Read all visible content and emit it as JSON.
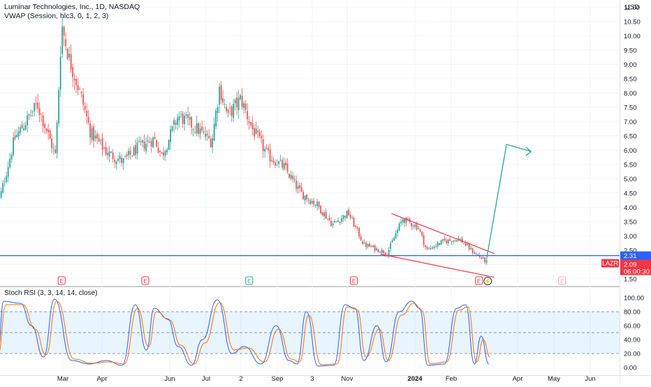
{
  "header": {
    "symbol_title": "Luminar Technologies, Inc., 1D, NASDAQ",
    "indicator_title": "VWAP (Session, hlc3, 0, 1, 2, 3)",
    "currency": "USD"
  },
  "chart_data": [
    {
      "type": "candlestick",
      "title": "Luminar Technologies, Inc., 1D, NASDAQ",
      "ylabel": "USD",
      "ylim": [
        1.25,
        11.25
      ],
      "y_ticks": [
        "1.50",
        "2.00",
        "2.50",
        "3.00",
        "3.50",
        "4.00",
        "4.50",
        "5.00",
        "5.50",
        "6.00",
        "6.50",
        "7.00",
        "7.50",
        "8.00",
        "8.50",
        "9.00",
        "9.50",
        "10.00",
        "10.50",
        "11.00"
      ],
      "x_ticks": [
        "Mar",
        "Apr",
        "Jun",
        "Jul",
        "2",
        "Sep",
        "3",
        "Nov",
        "2024",
        "Feb",
        "Apr",
        "May",
        "Jun"
      ],
      "grid": true,
      "colors": {
        "up": "#26a69a",
        "down": "#ef5350",
        "support": "#2962ff",
        "wedge": "#f23645",
        "projection": "#22ab94"
      },
      "close_path": [
        [
          "2023-01-06",
          4.0
        ],
        [
          "2023-01-20",
          6.4
        ],
        [
          "2023-02-08",
          7.6
        ],
        [
          "2023-02-23",
          5.8
        ],
        [
          "2023-02-28",
          10.4
        ],
        [
          "2023-03-06",
          9.2
        ],
        [
          "2023-03-16",
          7.8
        ],
        [
          "2023-03-23",
          6.6
        ],
        [
          "2023-04-06",
          5.9
        ],
        [
          "2023-04-20",
          5.6
        ],
        [
          "2023-05-04",
          6.1
        ],
        [
          "2023-05-18",
          6.4
        ],
        [
          "2023-05-25",
          5.8
        ],
        [
          "2023-06-08",
          7.2
        ],
        [
          "2023-06-22",
          6.8
        ],
        [
          "2023-07-06",
          6.3
        ],
        [
          "2023-07-13",
          8.2
        ],
        [
          "2023-07-20",
          7.2
        ],
        [
          "2023-08-01",
          7.8
        ],
        [
          "2023-08-10",
          6.8
        ],
        [
          "2023-08-24",
          5.8
        ],
        [
          "2023-09-07",
          5.4
        ],
        [
          "2023-09-21",
          4.5
        ],
        [
          "2023-10-05",
          4.1
        ],
        [
          "2023-10-19",
          3.4
        ],
        [
          "2023-11-02",
          3.8
        ],
        [
          "2023-11-16",
          2.7
        ],
        [
          "2023-11-30",
          2.5
        ],
        [
          "2023-12-07",
          2.4
        ],
        [
          "2023-12-21",
          3.6
        ],
        [
          "2024-01-04",
          3.3
        ],
        [
          "2024-01-11",
          2.5
        ],
        [
          "2024-01-25",
          2.8
        ],
        [
          "2024-02-08",
          2.9
        ],
        [
          "2024-02-22",
          2.4
        ],
        [
          "2024-03-04",
          2.09
        ]
      ],
      "annotations": {
        "last_price": "2.09",
        "support_level": "2.31",
        "countdown": "06:00:30",
        "ticker": "LAZR",
        "earnings_marker": "E",
        "dividend_marker": "⚡",
        "support_line_price": 2.31,
        "wedge_upper": [
          [
            "2023-12-11",
            3.78
          ],
          [
            "2024-03-11",
            2.38
          ]
        ],
        "wedge_lower": [
          [
            "2023-12-01",
            2.36
          ],
          [
            "2024-03-11",
            1.55
          ]
        ],
        "projection": [
          [
            "2024-03-04",
            2.2
          ],
          [
            "2024-03-22",
            6.2
          ],
          [
            "2024-04-12",
            5.95
          ]
        ],
        "earnings_dates": [
          "2023-02-28",
          "2023-05-10",
          "2023-08-08",
          "2023-11-07",
          "2024-02-26",
          "2024-05-08"
        ]
      }
    },
    {
      "type": "line",
      "title": "Stoch RSI (3, 3, 14, 14, close)",
      "ylim": [
        -10,
        115
      ],
      "y_ticks": [
        "0.00",
        "20.00",
        "40.00",
        "60.00",
        "80.00",
        "100.00"
      ],
      "bands": [
        20,
        50,
        80
      ],
      "series": [
        {
          "name": "K",
          "color": "#2962ff",
          "pivots": [
            [
              "2023-01-06",
              20
            ],
            [
              "2023-01-11",
              95
            ],
            [
              "2023-01-25",
              92
            ],
            [
              "2023-02-03",
              60
            ],
            [
              "2023-02-13",
              15
            ],
            [
              "2023-02-22",
              98
            ],
            [
              "2023-03-08",
              10
            ],
            [
              "2023-03-22",
              5
            ],
            [
              "2023-04-05",
              10
            ],
            [
              "2023-04-19",
              3
            ],
            [
              "2023-05-01",
              90
            ],
            [
              "2023-05-11",
              25
            ],
            [
              "2023-05-18",
              85
            ],
            [
              "2023-05-30",
              70
            ],
            [
              "2023-06-08",
              30
            ],
            [
              "2023-06-19",
              3
            ],
            [
              "2023-06-28",
              40
            ],
            [
              "2023-07-11",
              97
            ],
            [
              "2023-07-24",
              20
            ],
            [
              "2023-08-04",
              30
            ],
            [
              "2023-08-18",
              5
            ],
            [
              "2023-08-31",
              60
            ],
            [
              "2023-09-11",
              10
            ],
            [
              "2023-09-18",
              5
            ],
            [
              "2023-09-26",
              80
            ],
            [
              "2023-10-06",
              2
            ],
            [
              "2023-10-20",
              3
            ],
            [
              "2023-10-30",
              90
            ],
            [
              "2023-11-08",
              85
            ],
            [
              "2023-11-16",
              10
            ],
            [
              "2023-11-28",
              60
            ],
            [
              "2023-12-06",
              8
            ],
            [
              "2023-12-18",
              80
            ],
            [
              "2023-12-29",
              95
            ],
            [
              "2024-01-05",
              85
            ],
            [
              "2024-01-12",
              3
            ],
            [
              "2024-01-26",
              5
            ],
            [
              "2024-02-06",
              85
            ],
            [
              "2024-02-14",
              90
            ],
            [
              "2024-02-22",
              5
            ],
            [
              "2024-02-28",
              45
            ],
            [
              "2024-03-06",
              5
            ]
          ]
        },
        {
          "name": "D",
          "color": "#ff6d00",
          "pivots": [
            [
              "2023-01-06",
              15
            ],
            [
              "2023-01-13",
              90
            ],
            [
              "2023-01-27",
              90
            ],
            [
              "2023-02-06",
              55
            ],
            [
              "2023-02-15",
              18
            ],
            [
              "2023-02-24",
              95
            ],
            [
              "2023-03-10",
              12
            ],
            [
              "2023-03-24",
              6
            ],
            [
              "2023-04-07",
              8
            ],
            [
              "2023-04-21",
              5
            ],
            [
              "2023-05-03",
              85
            ],
            [
              "2023-05-13",
              30
            ],
            [
              "2023-05-20",
              80
            ],
            [
              "2023-06-01",
              68
            ],
            [
              "2023-06-10",
              32
            ],
            [
              "2023-06-21",
              5
            ],
            [
              "2023-06-30",
              35
            ],
            [
              "2023-07-13",
              93
            ],
            [
              "2023-07-26",
              25
            ],
            [
              "2023-08-07",
              28
            ],
            [
              "2023-08-21",
              8
            ],
            [
              "2023-09-02",
              55
            ],
            [
              "2023-09-13",
              12
            ],
            [
              "2023-09-20",
              8
            ],
            [
              "2023-09-28",
              75
            ],
            [
              "2023-10-09",
              4
            ],
            [
              "2023-10-23",
              5
            ],
            [
              "2023-11-01",
              87
            ],
            [
              "2023-11-10",
              83
            ],
            [
              "2023-11-18",
              15
            ],
            [
              "2023-11-30",
              55
            ],
            [
              "2023-12-08",
              10
            ],
            [
              "2023-12-20",
              75
            ],
            [
              "2023-12-31",
              92
            ],
            [
              "2024-01-07",
              82
            ],
            [
              "2024-01-14",
              5
            ],
            [
              "2024-01-28",
              8
            ],
            [
              "2024-02-08",
              82
            ],
            [
              "2024-02-16",
              87
            ],
            [
              "2024-02-24",
              8
            ],
            [
              "2024-03-01",
              40
            ],
            [
              "2024-03-07",
              15
            ]
          ]
        }
      ]
    }
  ]
}
